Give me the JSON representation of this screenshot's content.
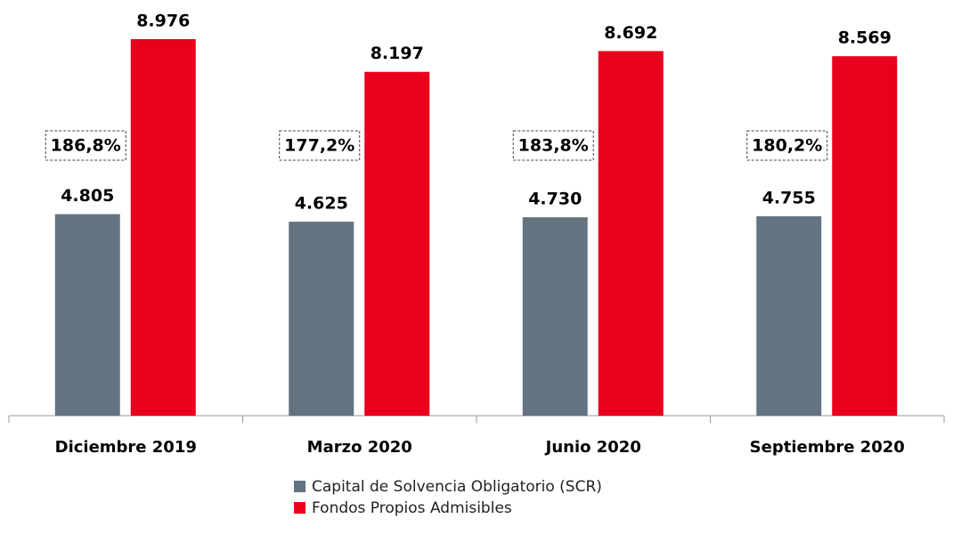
{
  "chart_data": {
    "type": "bar",
    "categories": [
      "Diciembre 2019",
      "Marzo 2020",
      "Junio 2020",
      "Septiembre 2020"
    ],
    "series": [
      {
        "name": "Capital de Solvencia Obligatorio (SCR)",
        "color": "#637380",
        "values": [
          4805,
          4625,
          4730,
          4755
        ],
        "value_labels": [
          "4.805",
          "4.625",
          "4.730",
          "4.755"
        ]
      },
      {
        "name": "Fondos Propios Admisibles",
        "color": "#e8001c",
        "values": [
          8976,
          8197,
          8692,
          8569
        ],
        "value_labels": [
          "8.976",
          "8.197",
          "8.692",
          "8.569"
        ]
      }
    ],
    "annotations": [
      "186,8%",
      "177,2%",
      "183,8%",
      "180,2%"
    ]
  }
}
